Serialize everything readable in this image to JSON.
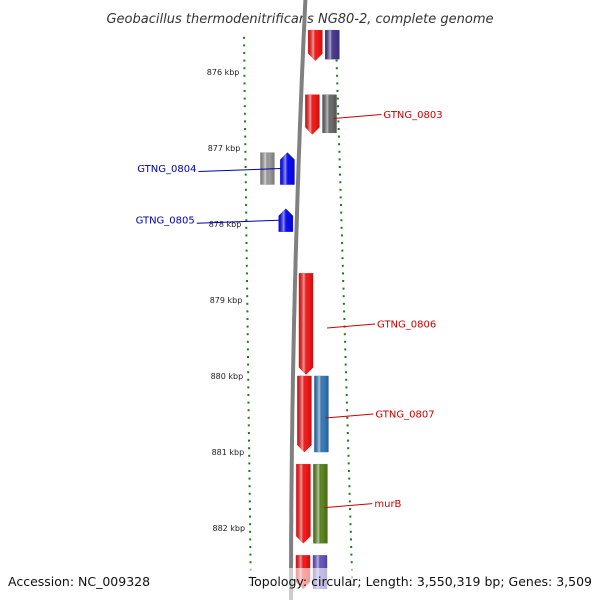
{
  "title": "Geobacillus thermodenitrificans NG80-2, complete genome",
  "footer": {
    "accession": "Accession: NC_009328",
    "summary": "Topology: circular; Length: 3,550,319 bp; Genes: 3,509"
  },
  "colors": {
    "tick": "#1f7a1f",
    "label_forward": "#cc0000",
    "label_reverse": "#0000aa",
    "backbone": "#808080"
  },
  "axis": {
    "unit": "kbp",
    "ticks": [
      {
        "pos": 876,
        "label": "876 kbp"
      },
      {
        "pos": 877,
        "label": "877 kbp"
      },
      {
        "pos": 878,
        "label": "878 kbp"
      },
      {
        "pos": 879,
        "label": "879 kbp"
      },
      {
        "pos": 880,
        "label": "880 kbp"
      },
      {
        "pos": 881,
        "label": "881 kbp"
      },
      {
        "pos": 882,
        "label": "882 kbp"
      }
    ]
  },
  "genes": [
    {
      "name": "",
      "color": "#ff1a1a",
      "strand": "+",
      "lane": "cds",
      "start": 875.45,
      "end": 875.85
    },
    {
      "name": "",
      "color": "#4a3d96",
      "strand": "+",
      "lane": "cog",
      "start": 875.45,
      "end": 875.83
    },
    {
      "name": "GTNG_0803",
      "color": "#ff1a1a",
      "strand": "+",
      "lane": "cds",
      "start": 876.3,
      "end": 876.82
    },
    {
      "name": "",
      "color": "#6f6f6f",
      "strand": "+",
      "lane": "cog",
      "start": 876.3,
      "end": 876.8
    },
    {
      "name": "GTNG_0804",
      "color": "#0a0aff",
      "strand": "-",
      "lane": "cds",
      "start": 877.06,
      "end": 877.48
    },
    {
      "name": "",
      "color": "#a0a0a0",
      "strand": "-",
      "lane": "cog",
      "start": 877.06,
      "end": 877.48
    },
    {
      "name": "GTNG_0805",
      "color": "#0a0aff",
      "strand": "-",
      "lane": "cds",
      "start": 877.8,
      "end": 878.1
    },
    {
      "name": "GTNG_0806",
      "color": "#ff1a1a",
      "strand": "+",
      "lane": "cds",
      "start": 878.65,
      "end": 879.98
    },
    {
      "name": "GTNG_0807",
      "color": "#ff1a1a",
      "strand": "+",
      "lane": "cds",
      "start": 880.0,
      "end": 881.0
    },
    {
      "name": "",
      "color": "#3a7fc0",
      "strand": "+",
      "lane": "cog",
      "start": 880.0,
      "end": 881.0
    },
    {
      "name": "murB",
      "color": "#ff1a1a",
      "strand": "+",
      "lane": "cds",
      "start": 881.16,
      "end": 882.2
    },
    {
      "name": "",
      "color": "#5f8a1f",
      "strand": "+",
      "lane": "cog",
      "start": 881.16,
      "end": 882.2
    },
    {
      "name": "",
      "color": "#ff1a1a",
      "strand": "+",
      "lane": "cds",
      "start": 882.36,
      "end": 882.8
    },
    {
      "name": "",
      "color": "#6a5ac8",
      "strand": "+",
      "lane": "cog",
      "start": 882.36,
      "end": 882.8
    }
  ]
}
